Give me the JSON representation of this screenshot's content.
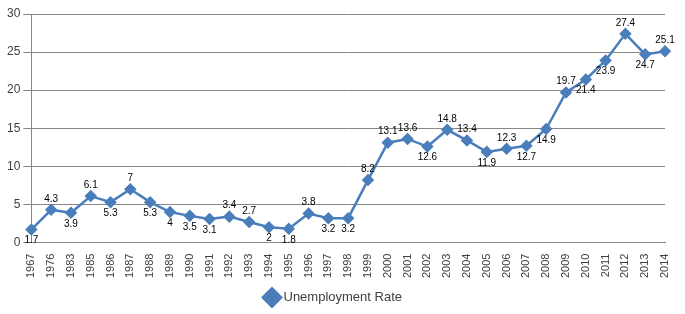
{
  "chart_data": {
    "type": "line",
    "categories": [
      "1967",
      "1976",
      "1983",
      "1985",
      "1986",
      "1987",
      "1988",
      "1989",
      "1990",
      "1991",
      "1992",
      "1993",
      "1994",
      "1995",
      "1996",
      "1997",
      "1998",
      "1999",
      "2000",
      "2001",
      "2002",
      "2003",
      "2004",
      "2005",
      "2006",
      "2007",
      "2008",
      "2009",
      "2010",
      "2011",
      "2012",
      "2013",
      "2014"
    ],
    "series": [
      {
        "name": "Unemployment Rate",
        "color": "#4a7ebb",
        "marker": "diamond",
        "values": [
          1.7,
          4.3,
          3.9,
          6.1,
          5.3,
          7,
          5.3,
          4,
          3.5,
          3.1,
          3.4,
          2.7,
          2,
          1.8,
          3.8,
          3.2,
          3.2,
          8.2,
          13.1,
          13.6,
          12.6,
          14.8,
          13.4,
          11.9,
          12.3,
          12.7,
          14.9,
          19.7,
          21.4,
          23.9,
          27.4,
          24.7,
          25.1
        ]
      }
    ],
    "ylim": [
      0,
      30
    ],
    "yticks": [
      0,
      5,
      10,
      15,
      20,
      25,
      30
    ],
    "grid": true,
    "legend": "bottom",
    "data_labels": true
  }
}
